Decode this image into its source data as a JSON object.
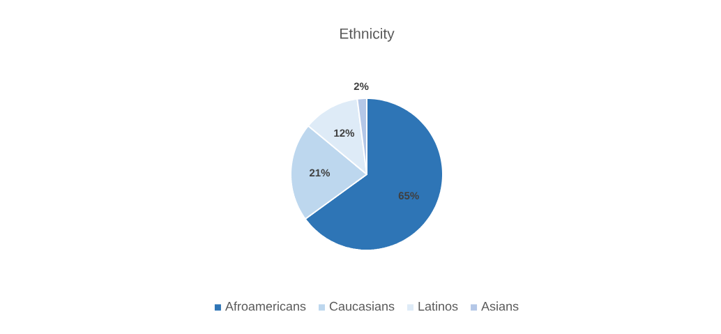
{
  "chart_data": {
    "type": "pie",
    "title": "Ethnicity",
    "categories": [
      "Afroamericans",
      "Caucasians",
      "Latinos",
      "Asians"
    ],
    "values": [
      65,
      21,
      12,
      2
    ],
    "colors": [
      "#2e75b6",
      "#bdd7ee",
      "#deebf7",
      "#b4c7e7"
    ],
    "value_labels": [
      "65%",
      "21%",
      "12%",
      "2%"
    ],
    "legend": "bottom"
  }
}
